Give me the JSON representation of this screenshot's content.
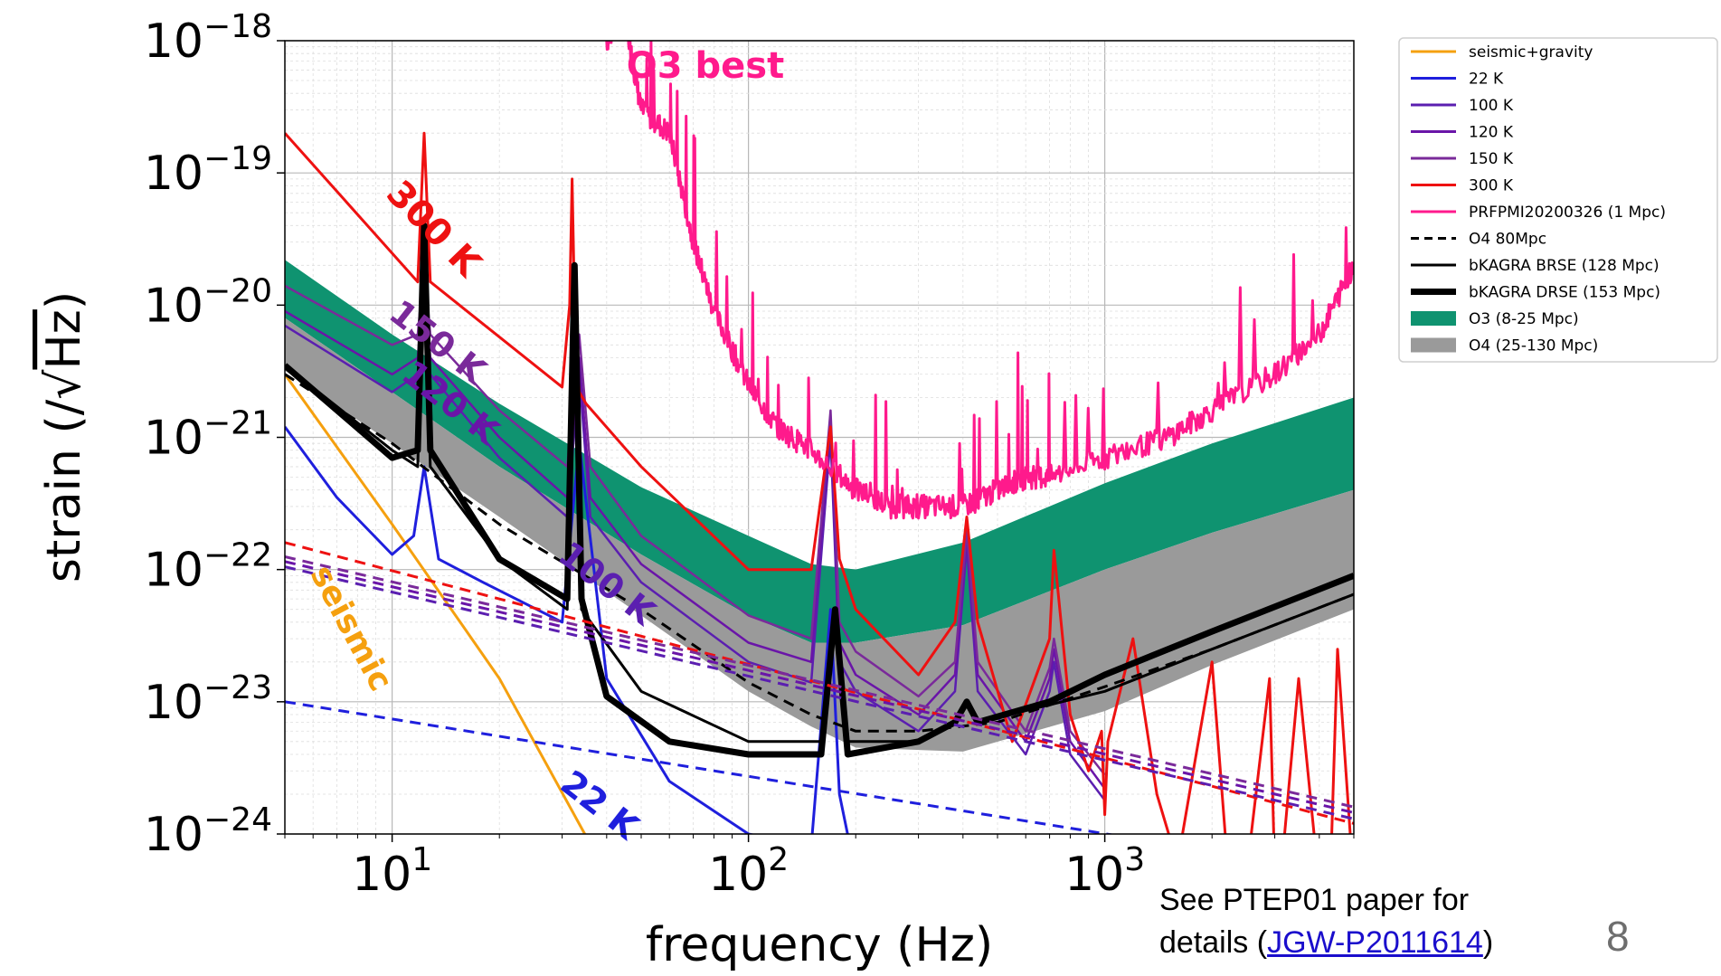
{
  "chart_data": {
    "type": "line",
    "xscale": "log",
    "yscale": "log",
    "xlim": [
      5,
      5000
    ],
    "ylim": [
      1e-24,
      1e-18
    ],
    "grid": true,
    "legend_position": "outside-right",
    "xlabel": "frequency (Hz)",
    "ylabel_prefix": "strain (/",
    "ylabel_radical": "√",
    "ylabel_radicand": "Hz",
    "ylabel_suffix": ")",
    "xticks": [
      {
        "value": 10,
        "base": "10",
        "exp": "1"
      },
      {
        "value": 100,
        "base": "10",
        "exp": "2"
      },
      {
        "value": 1000,
        "base": "10",
        "exp": "3"
      }
    ],
    "yticks": [
      {
        "value": 1e-18,
        "base": "10",
        "exp": "−18"
      },
      {
        "value": 1e-19,
        "base": "10",
        "exp": "−19"
      },
      {
        "value": 1e-20,
        "base": "10",
        "exp": "−20"
      },
      {
        "value": 1e-21,
        "base": "10",
        "exp": "−21"
      },
      {
        "value": 1e-22,
        "base": "10",
        "exp": "−22"
      },
      {
        "value": 1e-23,
        "base": "10",
        "exp": "−23"
      },
      {
        "value": 1e-24,
        "base": "10",
        "exp": "−24"
      }
    ],
    "bands": [
      {
        "name": "O3 (8-25 Mpc)",
        "color": "#0f9370",
        "upper": [
          [
            5,
            2.2e-20
          ],
          [
            10,
            6e-21
          ],
          [
            20,
            1.8e-21
          ],
          [
            50,
            4.2e-22
          ],
          [
            100,
            1.8e-22
          ],
          [
            150,
            1.1e-22
          ],
          [
            200,
            1e-22
          ],
          [
            400,
            1.6e-22
          ],
          [
            1000,
            4.5e-22
          ],
          [
            2000,
            9e-22
          ],
          [
            5000,
            2e-21
          ]
        ],
        "lower": [
          [
            5,
            8e-21
          ],
          [
            10,
            2.2e-21
          ],
          [
            20,
            6e-22
          ],
          [
            50,
            1.3e-22
          ],
          [
            100,
            4.5e-23
          ],
          [
            150,
            2.8e-23
          ],
          [
            200,
            2.8e-23
          ],
          [
            400,
            3.8e-23
          ],
          [
            1000,
            1e-22
          ],
          [
            2000,
            1.9e-22
          ],
          [
            5000,
            4e-22
          ]
        ]
      },
      {
        "name": "O4 (25-130 Mpc)",
        "color": "#9a9a9a",
        "upper": [
          [
            5,
            8e-21
          ],
          [
            10,
            2.2e-21
          ],
          [
            20,
            6e-22
          ],
          [
            50,
            1.3e-22
          ],
          [
            100,
            4.5e-23
          ],
          [
            150,
            2.8e-23
          ],
          [
            200,
            2.8e-23
          ],
          [
            400,
            3.8e-23
          ],
          [
            1000,
            1e-22
          ],
          [
            2000,
            1.9e-22
          ],
          [
            5000,
            4e-22
          ]
        ],
        "lower": [
          [
            5,
            3.2e-21
          ],
          [
            10,
            9e-22
          ],
          [
            20,
            2.5e-22
          ],
          [
            50,
            4.5e-23
          ],
          [
            100,
            1.2e-23
          ],
          [
            150,
            6.5e-24
          ],
          [
            200,
            4.5e-24
          ],
          [
            400,
            4.2e-24
          ],
          [
            1000,
            8.5e-24
          ],
          [
            2000,
            1.9e-23
          ],
          [
            5000,
            5e-23
          ]
        ]
      }
    ],
    "series": [
      {
        "name": "seismic+gravity",
        "color": "#f5a00f",
        "width": 3,
        "dash": "",
        "x": [
          5,
          10,
          20,
          40
        ],
        "y": [
          3e-21,
          2.2e-22,
          1.5e-23,
          5e-25
        ]
      },
      {
        "name": "22 K",
        "color": "#1f1fdd",
        "width": 3,
        "dash": "",
        "x": [
          5,
          7,
          10,
          11.5,
          12.3,
          13.5,
          18,
          30,
          33.5,
          40,
          60,
          100,
          150,
          170,
          180,
          200
        ],
        "y": [
          1.2e-21,
          3.5e-22,
          1.3e-22,
          1.8e-22,
          6e-22,
          1.2e-22,
          8e-23,
          4e-23,
          9e-22,
          1.5e-23,
          2.5e-24,
          1e-24,
          8e-25,
          5e-23,
          2e-24,
          5e-25
        ]
      },
      {
        "name": "100 K",
        "color": "#5b1fb0",
        "width": 2.5,
        "dash": "",
        "x": [
          5,
          10,
          11.8,
          12.3,
          12.8,
          20,
          31,
          33.5,
          36,
          50,
          100,
          150,
          170,
          180,
          200,
          300,
          380,
          410,
          440,
          600,
          700,
          720,
          800,
          1000
        ],
        "y": [
          7e-21,
          2.2e-21,
          3e-21,
          1.2e-20,
          3e-21,
          7e-22,
          2.5e-22,
          3e-21,
          2.5e-22,
          8e-23,
          2e-23,
          1.4e-23,
          1e-21,
          2e-23,
          1.2e-23,
          6e-24,
          1.2e-23,
          1.5e-22,
          1.2e-23,
          4e-24,
          1.2e-23,
          2e-23,
          4e-24,
          1.8e-24
        ]
      },
      {
        "name": "120 K",
        "color": "#6a15a8",
        "width": 2.5,
        "dash": "",
        "x": [
          5,
          10,
          11.8,
          12.3,
          12.8,
          20,
          31,
          33.5,
          36,
          50,
          100,
          150,
          170,
          180,
          200,
          300,
          380,
          410,
          440,
          600,
          700,
          720,
          800,
          1000
        ],
        "y": [
          9e-21,
          3e-21,
          4e-21,
          1.5e-20,
          4e-21,
          1e-21,
          3.5e-22,
          4e-21,
          3.5e-22,
          1.1e-22,
          2.8e-23,
          2e-23,
          1.3e-21,
          2.8e-23,
          1.6e-23,
          8e-24,
          1.6e-23,
          1.8e-22,
          1.6e-23,
          5e-24,
          1.5e-23,
          2.5e-23,
          5e-24,
          2.2e-24
        ]
      },
      {
        "name": "150 K",
        "color": "#7a2a9a",
        "width": 2.5,
        "dash": "",
        "x": [
          5,
          10,
          11.8,
          12.3,
          12.8,
          20,
          31,
          33.5,
          36,
          50,
          100,
          150,
          170,
          180,
          200,
          300,
          380,
          410,
          440,
          600,
          700,
          720,
          800,
          1000
        ],
        "y": [
          1.4e-20,
          5e-21,
          6e-21,
          2e-20,
          6e-21,
          1.6e-21,
          6e-22,
          6e-21,
          6e-22,
          1.8e-22,
          4.5e-23,
          3e-23,
          1.6e-21,
          4e-23,
          2.4e-23,
          1.1e-23,
          2e-23,
          2e-22,
          2e-23,
          6e-24,
          1.8e-23,
          3e-23,
          6e-24,
          2.8e-24
        ]
      },
      {
        "name": "300 K",
        "color": "#ee1111",
        "width": 3,
        "dash": "",
        "x": [
          5,
          11.8,
          12.3,
          12.8,
          30,
          31.5,
          32,
          32.5,
          33.5,
          35,
          50,
          100,
          150,
          170,
          180,
          200,
          300,
          380,
          410,
          440,
          550,
          700,
          720,
          800,
          900,
          980,
          1000,
          1020,
          1200,
          1400,
          1600,
          2000,
          2200,
          2500,
          2900,
          3000,
          3100,
          3500,
          4000,
          4300,
          4500,
          5000
        ],
        "y": [
          2e-19,
          1.5e-20,
          2e-19,
          1.5e-20,
          2.4e-21,
          1e-20,
          9e-20,
          1e-20,
          2.2e-21,
          1.8e-21,
          6e-22,
          1e-22,
          1e-22,
          1.2e-21,
          1.2e-22,
          5e-23,
          1.6e-23,
          4e-23,
          2.5e-22,
          4e-23,
          5e-24,
          3e-23,
          1.4e-22,
          8e-24,
          3e-24,
          6e-24,
          1.4e-24,
          5e-24,
          3e-23,
          2e-24,
          6e-25,
          2e-23,
          7e-25,
          5e-25,
          1.5e-23,
          5e-25,
          4e-25,
          1.5e-23,
          4e-25,
          5e-25,
          2.5e-23,
          4e-25
        ]
      },
      {
        "name": "PRFPMI20200326 (1 Mpc)",
        "color": "#ff1a8c",
        "width": 3,
        "dash": "",
        "noisy": true,
        "x": [
          40,
          45,
          50,
          60,
          70,
          80,
          100,
          120,
          150,
          200,
          250,
          300,
          400,
          500,
          600,
          700,
          1000,
          1500,
          2000,
          3000,
          4000,
          5000
        ],
        "y": [
          1e-18,
          1.5e-18,
          3e-19,
          2e-19,
          3e-20,
          9e-21,
          2.5e-21,
          1.2e-21,
          8e-22,
          4e-22,
          3e-22,
          3e-22,
          3e-22,
          4e-22,
          5e-22,
          5e-22,
          7e-22,
          1e-21,
          1.6e-21,
          3e-21,
          6e-21,
          2e-20
        ]
      },
      {
        "name": "O4 80Mpc",
        "color": "#000000",
        "width": 3,
        "dash": "12,8",
        "x": [
          5,
          10,
          20,
          50,
          100,
          150,
          200,
          300,
          500,
          1000,
          2000,
          5000
        ],
        "y": [
          3e-21,
          9e-22,
          2.2e-22,
          5e-23,
          1.4e-23,
          8e-24,
          6e-24,
          6e-24,
          7e-24,
          1.3e-23,
          2.5e-23,
          6.5e-23
        ]
      },
      {
        "name": "bKAGRA BRSE (128 Mpc)",
        "color": "#000000",
        "width": 3,
        "dash": "",
        "x": [
          5,
          10,
          11.8,
          12.3,
          12.8,
          20,
          31,
          32.5,
          34,
          50,
          100,
          160,
          175,
          190,
          300,
          380,
          410,
          440,
          1000,
          2000,
          5000
        ],
        "y": [
          3.5e-21,
          8e-22,
          6e-22,
          3e-20,
          6e-22,
          1.2e-22,
          5e-23,
          1.2e-20,
          5e-23,
          1.2e-23,
          5e-24,
          5e-24,
          3.5e-23,
          5e-24,
          5e-24,
          7e-24,
          1e-23,
          7e-24,
          1.2e-23,
          2.5e-23,
          6.5e-23
        ]
      },
      {
        "name": "bKAGRA DRSE (153 Mpc)",
        "color": "#000000",
        "width": 7,
        "dash": "",
        "x": [
          5,
          10,
          11.8,
          12.3,
          12.8,
          20,
          31,
          32.5,
          34,
          40,
          60,
          100,
          160,
          175,
          190,
          300,
          380,
          410,
          440,
          700,
          1000,
          2000,
          5000
        ],
        "y": [
          3.5e-21,
          7e-22,
          8e-22,
          4e-20,
          8e-22,
          1.2e-22,
          6e-23,
          2e-20,
          6e-23,
          1.1e-23,
          5e-24,
          4e-24,
          4e-24,
          5e-23,
          4e-24,
          5e-24,
          7e-24,
          1e-23,
          7e-24,
          1e-23,
          1.6e-23,
          3.4e-23,
          9e-23
        ]
      },
      {
        "name": "",
        "color": "#ee1111",
        "width": 3,
        "dash": "12,8",
        "x": [
          5,
          5000
        ],
        "y": [
          1.6e-22,
          1.2e-24
        ]
      },
      {
        "name": "",
        "color": "#7a2a9a",
        "width": 3,
        "dash": "12,8",
        "x": [
          5,
          5000
        ],
        "y": [
          1.25e-22,
          1.6e-24
        ]
      },
      {
        "name": "",
        "color": "#6a15a8",
        "width": 3,
        "dash": "12,8",
        "x": [
          5,
          5000
        ],
        "y": [
          1.15e-22,
          1.45e-24
        ]
      },
      {
        "name": "",
        "color": "#5b1fb0",
        "width": 3,
        "dash": "12,8",
        "x": [
          5,
          5000
        ],
        "y": [
          1.05e-22,
          1.3e-24
        ]
      },
      {
        "name": "",
        "color": "#1f1fdd",
        "width": 3,
        "dash": "12,8",
        "x": [
          5,
          5000
        ],
        "y": [
          1e-23,
          5e-25
        ]
      }
    ],
    "legend": [
      {
        "label": "seismic+gravity",
        "color": "#f5a00f",
        "kind": "line",
        "width": 3,
        "dash": ""
      },
      {
        "label": "22 K",
        "color": "#1f1fdd",
        "kind": "line",
        "width": 3,
        "dash": ""
      },
      {
        "label": "100 K",
        "color": "#5b1fb0",
        "kind": "line",
        "width": 3,
        "dash": ""
      },
      {
        "label": "120 K",
        "color": "#6a15a8",
        "kind": "line",
        "width": 3,
        "dash": ""
      },
      {
        "label": "150 K",
        "color": "#7a2a9a",
        "kind": "line",
        "width": 3,
        "dash": ""
      },
      {
        "label": "300 K",
        "color": "#ee1111",
        "kind": "line",
        "width": 3,
        "dash": ""
      },
      {
        "label": "PRFPMI20200326 (1 Mpc)",
        "color": "#ff1a8c",
        "kind": "line",
        "width": 3,
        "dash": ""
      },
      {
        "label": "O4 80Mpc",
        "color": "#000000",
        "kind": "line",
        "width": 3,
        "dash": "9,6"
      },
      {
        "label": "bKAGRA BRSE (128 Mpc)",
        "color": "#000000",
        "kind": "line",
        "width": 3,
        "dash": ""
      },
      {
        "label": "bKAGRA DRSE (153 Mpc)",
        "color": "#000000",
        "kind": "line",
        "width": 7,
        "dash": ""
      },
      {
        "label": "O3 (8-25 Mpc)",
        "color": "#0f9370",
        "kind": "patch"
      },
      {
        "label": "O4 (25-130 Mpc)",
        "color": "#9a9a9a",
        "kind": "patch"
      }
    ],
    "annotations": [
      {
        "text": "O3 best",
        "color": "#ff1a8c"
      },
      {
        "text": "300 K",
        "color": "#ee1111"
      },
      {
        "text": "150 K",
        "color": "#7a2a9a"
      },
      {
        "text": "120 K",
        "color": "#6a15a8"
      },
      {
        "text": "100 K",
        "color": "#5b1fb0"
      },
      {
        "text": "seismic",
        "color": "#f5a00f"
      },
      {
        "text": "22 K",
        "color": "#1f1fdd"
      }
    ]
  },
  "note": {
    "line1": "See PTEP01 paper for",
    "line2_prefix": "details (",
    "link_text": "JGW-P2011614",
    "line2_suffix": ")"
  },
  "page_number": "8"
}
